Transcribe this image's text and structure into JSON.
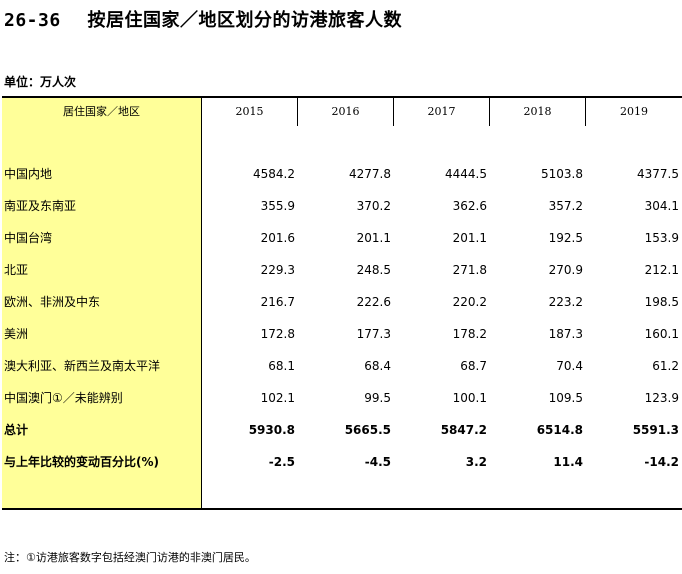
{
  "title": {
    "number": "26-36",
    "text": "按居住国家／地区划分的访港旅客人数"
  },
  "unit": "单位：万人次",
  "table": {
    "region_header": "居住国家／地区",
    "years": [
      "2015",
      "2016",
      "2017",
      "2018",
      "2019"
    ],
    "rows": [
      {
        "label": "中国内地",
        "values": [
          "4584.2",
          "4277.8",
          "4444.5",
          "5103.8",
          "4377.5"
        ],
        "bold": false
      },
      {
        "label": "南亚及东南亚",
        "values": [
          "355.9",
          "370.2",
          "362.6",
          "357.2",
          "304.1"
        ],
        "bold": false
      },
      {
        "label": "中国台湾",
        "values": [
          "201.6",
          "201.1",
          "201.1",
          "192.5",
          "153.9"
        ],
        "bold": false
      },
      {
        "label": "北亚",
        "values": [
          "229.3",
          "248.5",
          "271.8",
          "270.9",
          "212.1"
        ],
        "bold": false
      },
      {
        "label": "欧洲、非洲及中东",
        "values": [
          "216.7",
          "222.6",
          "220.2",
          "223.2",
          "198.5"
        ],
        "bold": false
      },
      {
        "label": "美洲",
        "values": [
          "172.8",
          "177.3",
          "178.2",
          "187.3",
          "160.1"
        ],
        "bold": false
      },
      {
        "label": "澳大利亚、新西兰及南太平洋",
        "values": [
          "68.1",
          "68.4",
          "68.7",
          "70.4",
          "61.2"
        ],
        "bold": false
      },
      {
        "label": "中国澳门①／未能辨别",
        "values": [
          "102.1",
          "99.5",
          "100.1",
          "109.5",
          "123.9"
        ],
        "bold": false
      },
      {
        "label": "总计",
        "values": [
          "5930.8",
          "5665.5",
          "5847.2",
          "6514.8",
          "5591.3"
        ],
        "bold": true
      },
      {
        "label": "与上年比较的变动百分比(%)",
        "values": [
          "-2.5",
          "-4.5",
          "3.2",
          "11.4",
          "-14.2"
        ],
        "bold": true
      }
    ]
  },
  "note": "注：①访港旅客数字包括经澳门访港的非澳门居民。"
}
